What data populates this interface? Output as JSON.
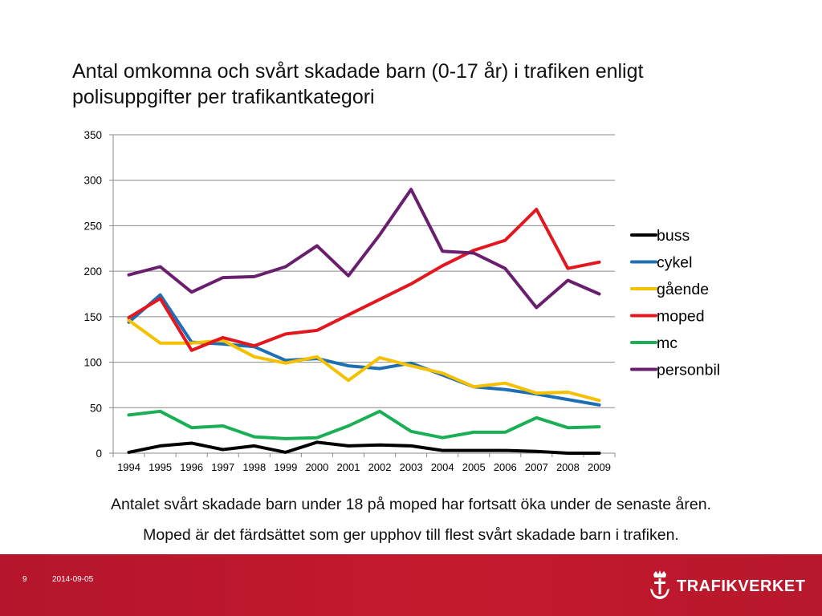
{
  "slide": {
    "title": "Antal omkomna och svårt skadade barn (0-17 år) i trafiken enligt polisuppgifter per trafikantkategori",
    "caption_1": "Antalet svårt skadade barn under 18 på moped har fortsatt öka under de senaste åren.",
    "caption_2": "Moped är det färdsättet som ger upphov till flest svårt skadade barn i trafiken."
  },
  "footer": {
    "page_number": "9",
    "date": "2014-09-05",
    "brand": "TRAFIKVERKET",
    "logo_icon": "crown-anchor-icon",
    "background_color": "#c0182d"
  },
  "chart_data": {
    "type": "line",
    "title": "",
    "xlabel": "",
    "ylabel": "",
    "categories": [
      "1994",
      "1995",
      "1996",
      "1997",
      "1998",
      "1999",
      "2000",
      "2001",
      "2002",
      "2003",
      "2004",
      "2005",
      "2006",
      "2007",
      "2008",
      "2009"
    ],
    "ylim": [
      0,
      350
    ],
    "yticks": [
      0,
      50,
      100,
      150,
      200,
      250,
      300,
      350
    ],
    "grid": true,
    "legend_position": "right",
    "series": [
      {
        "name": "buss",
        "color": "#000000",
        "values": [
          1,
          8,
          11,
          4,
          8,
          1,
          12,
          8,
          9,
          8,
          3,
          3,
          3,
          2,
          0,
          0
        ]
      },
      {
        "name": "cykel",
        "color": "#1f6fb5",
        "values": [
          144,
          174,
          122,
          120,
          117,
          102,
          104,
          96,
          93,
          99,
          86,
          73,
          70,
          65,
          59,
          53
        ]
      },
      {
        "name": "gående",
        "color": "#f5c000",
        "values": [
          146,
          121,
          121,
          124,
          106,
          99,
          106,
          80,
          105,
          96,
          88,
          73,
          77,
          66,
          67,
          58
        ]
      },
      {
        "name": "moped",
        "color": "#e2171f",
        "values": [
          149,
          170,
          113,
          127,
          118,
          131,
          135,
          152,
          169,
          186,
          206,
          223,
          234,
          268,
          203,
          210
        ]
      },
      {
        "name": "mc",
        "color": "#1aaf54",
        "values": [
          42,
          46,
          28,
          30,
          18,
          16,
          17,
          30,
          46,
          24,
          17,
          23,
          23,
          39,
          28,
          29
        ]
      },
      {
        "name": "personbil",
        "color": "#6a1f6e",
        "values": [
          196,
          205,
          177,
          193,
          194,
          205,
          228,
          195,
          240,
          290,
          222,
          220,
          203,
          160,
          190,
          175
        ]
      }
    ]
  }
}
